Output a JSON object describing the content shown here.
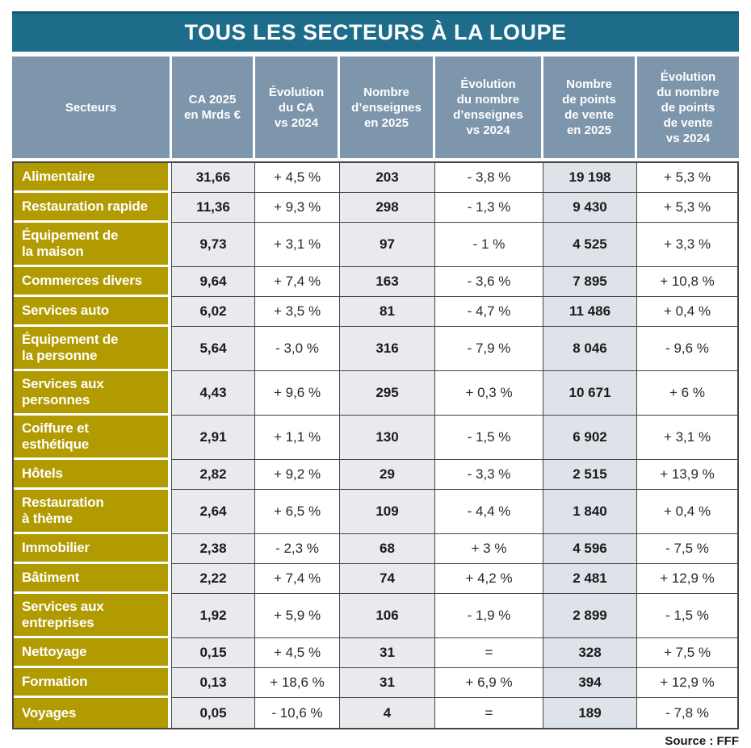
{
  "title": "TOUS LES SECTEURS À LA LOUPE",
  "source": "Source : FFF",
  "colors": {
    "title_bg": "#1d6c89",
    "header_bg": "#7e96ac",
    "sector_bg": "#b29b00",
    "cell_gray": "#e8eaed",
    "cell_blue_gray": "#dee3ea",
    "cell_white": "#ffffff",
    "border": "#454545",
    "text_light": "#ffffff",
    "text_dark": "#1a1a1a"
  },
  "chart_data": {
    "type": "table",
    "title": "TOUS LES SECTEURS À LA LOUPE",
    "columns": [
      "Secteurs",
      "CA 2025\nen Mrds €",
      "Évolution\ndu CA\nvs 2024",
      "Nombre\nd’enseignes\nen 2025",
      "Évolution\ndu nombre\nd’enseignes\nvs 2024",
      "Nombre\nde points\nde vente\nen 2025",
      "Évolution\ndu nombre\nde points\nde vente\nvs 2024"
    ],
    "rows": [
      {
        "sector": "Alimentaire",
        "values": [
          "31,66",
          "+ 4,5 %",
          "203",
          "- 3,8 %",
          "19 198",
          "+ 5,3 %"
        ]
      },
      {
        "sector": "Restauration rapide",
        "values": [
          "11,36",
          "+ 9,3 %",
          "298",
          "- 1,3 %",
          "9 430",
          "+ 5,3 %"
        ]
      },
      {
        "sector": "Équipement de\nla maison",
        "values": [
          "9,73",
          "+ 3,1 %",
          "97",
          "- 1 %",
          "4 525",
          "+ 3,3 %"
        ]
      },
      {
        "sector": "Commerces divers",
        "values": [
          "9,64",
          "+ 7,4 %",
          "163",
          "- 3,6 %",
          "7 895",
          "+ 10,8 %"
        ]
      },
      {
        "sector": "Services auto",
        "values": [
          "6,02",
          "+ 3,5 %",
          "81",
          "- 4,7 %",
          "11 486",
          "+ 0,4 %"
        ]
      },
      {
        "sector": "Équipement de\nla personne",
        "values": [
          "5,64",
          "- 3,0 %",
          "316",
          "- 7,9 %",
          "8 046",
          "- 9,6 %"
        ]
      },
      {
        "sector": "Services aux\npersonnes",
        "values": [
          "4,43",
          "+ 9,6 %",
          "295",
          "+ 0,3 %",
          "10 671",
          "+ 6 %"
        ]
      },
      {
        "sector": "Coiffure et\nesthétique",
        "values": [
          "2,91",
          "+ 1,1 %",
          "130",
          "- 1,5 %",
          "6 902",
          "+ 3,1 %"
        ]
      },
      {
        "sector": "Hôtels",
        "values": [
          "2,82",
          "+ 9,2 %",
          "29",
          "- 3,3 %",
          "2 515",
          "+ 13,9 %"
        ]
      },
      {
        "sector": "Restauration\nà thème",
        "values": [
          "2,64",
          "+ 6,5 %",
          "109",
          "- 4,4 %",
          "1 840",
          "+ 0,4 %"
        ]
      },
      {
        "sector": "Immobilier",
        "values": [
          "2,38",
          "- 2,3 %",
          "68",
          "+ 3 %",
          "4 596",
          "- 7,5 %"
        ]
      },
      {
        "sector": "Bâtiment",
        "values": [
          "2,22",
          "+ 7,4 %",
          "74",
          "+ 4,2 %",
          "2 481",
          "+ 12,9 %"
        ]
      },
      {
        "sector": "Services aux\nentreprises",
        "values": [
          "1,92",
          "+ 5,9 %",
          "106",
          "- 1,9 %",
          "2 899",
          "- 1,5 %"
        ]
      },
      {
        "sector": "Nettoyage",
        "values": [
          "0,15",
          "+ 4,5 %",
          "31",
          "=",
          "328",
          "+ 7,5 %"
        ]
      },
      {
        "sector": "Formation",
        "values": [
          "0,13",
          "+ 18,6 %",
          "31",
          "+ 6,9 %",
          "394",
          "+ 12,9 %"
        ]
      },
      {
        "sector": "Voyages",
        "values": [
          "0,05",
          "- 10,6 %",
          "4",
          "=",
          "189",
          "- 7,8 %"
        ]
      }
    ]
  }
}
